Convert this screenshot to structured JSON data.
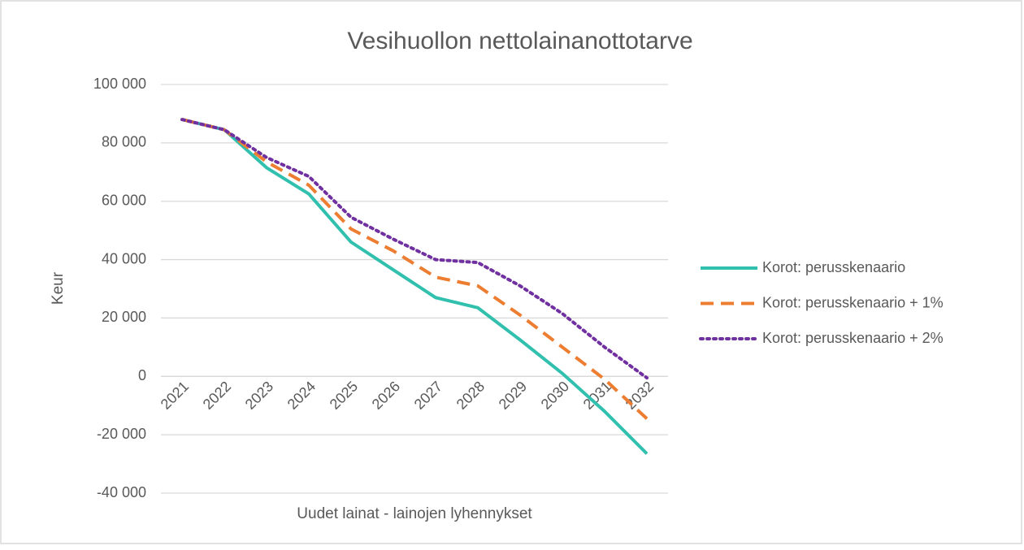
{
  "chart_data": {
    "type": "line",
    "title": "Vesihuollon nettolainanottotarve",
    "y_label": "Keur",
    "x_label": "Uudet lainat - lainojen lyhennykset",
    "categories": [
      "2021",
      "2022",
      "2023",
      "2024",
      "2025",
      "2026",
      "2027",
      "2028",
      "2029",
      "2030",
      "2031",
      "2032"
    ],
    "series": [
      {
        "name": "Korot: perusskenaario",
        "color": "#31bfae",
        "style": "solid",
        "values": [
          88000,
          84500,
          71500,
          62500,
          46000,
          36500,
          27000,
          23500,
          12500,
          1000,
          -12000,
          -26500
        ]
      },
      {
        "name": "Korot: perusskenaario + 1%",
        "color": "#ed7d31",
        "style": "dashed",
        "values": [
          88000,
          84500,
          73500,
          65500,
          50500,
          43000,
          34000,
          31000,
          21000,
          10000,
          -1000,
          -14500
        ]
      },
      {
        "name": "Korot: perusskenaario + 2%",
        "color": "#7030a0",
        "style": "dotted",
        "values": [
          88000,
          84500,
          75000,
          68500,
          54500,
          47000,
          40000,
          39000,
          31000,
          21500,
          10000,
          -500
        ]
      }
    ],
    "ylim": [
      -40000,
      100000
    ],
    "yticks": [
      {
        "value": -40000,
        "label": "-40 000"
      },
      {
        "value": -20000,
        "label": "-20 000"
      },
      0,
      {
        "value": 20000,
        "label": "20 000"
      },
      {
        "value": 40000,
        "label": "40 000"
      },
      {
        "value": 60000,
        "label": "60 000"
      },
      {
        "value": 80000,
        "label": "80 000"
      },
      {
        "value": 100000,
        "label": "100 000"
      }
    ],
    "grid": true,
    "legend": "right"
  }
}
